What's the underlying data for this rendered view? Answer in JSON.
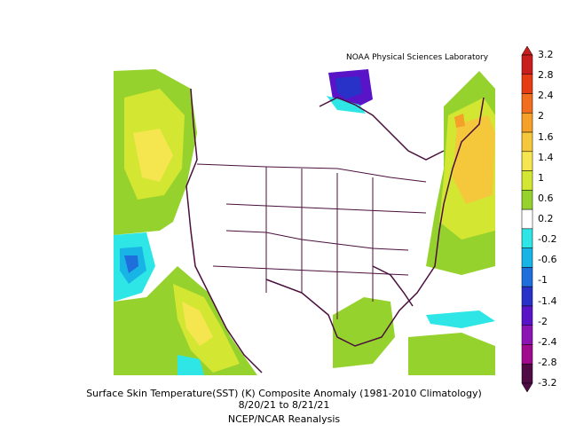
{
  "map": {
    "credit": "NOAA Physical Sciences Laboratory",
    "caption_line1": "Surface Skin Temperature(SST) (K) Composite Anomaly (1981-2010 Climatology)",
    "caption_line2": "8/20/21 to 8/21/21",
    "caption_line3": "NCEP/NCAR Reanalysis"
  },
  "colorbar": {
    "labels": [
      "3.2",
      "2.8",
      "2.4",
      "2",
      "1.6",
      "1.4",
      "1",
      "0.6",
      "0.2",
      "-0.2",
      "-0.6",
      "-1",
      "-1.4",
      "-2",
      "-2.4",
      "-2.8",
      "-3.2"
    ],
    "colors": [
      "#c81e1e",
      "#e63c14",
      "#f06e1e",
      "#f5a028",
      "#f5c83c",
      "#f5e650",
      "#d2e632",
      "#96d22d",
      "#ffffff",
      "#2fe6e6",
      "#19b4e6",
      "#1e6edc",
      "#2832c8",
      "#5a14c8",
      "#8c14b4",
      "#a00a8c",
      "#500a46"
    ]
  }
}
